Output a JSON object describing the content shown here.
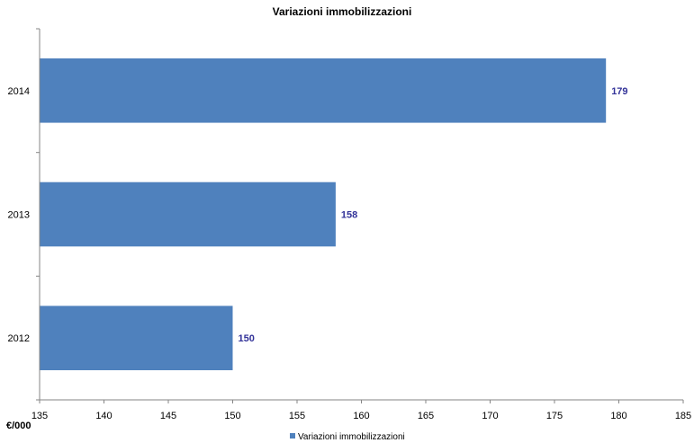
{
  "chart_data": {
    "type": "bar",
    "orientation": "horizontal",
    "title": "Variazioni immobilizzazioni",
    "x_unit": "€/000",
    "categories": [
      "2014",
      "2013",
      "2012"
    ],
    "series": [
      {
        "name": "Variazioni immobilizzazioni",
        "values": [
          179,
          158,
          150
        ],
        "data_labels": [
          "179",
          "158",
          "150"
        ]
      }
    ],
    "xlim": [
      135,
      185
    ],
    "x_ticks": [
      "135",
      "140",
      "145",
      "150",
      "155",
      "160",
      "165",
      "170",
      "175",
      "180",
      "185"
    ],
    "grid": false,
    "legend": "bottom-center",
    "colors": {
      "bar": "#4f81bd",
      "data_label": "#333399",
      "axis": "#868686"
    }
  }
}
